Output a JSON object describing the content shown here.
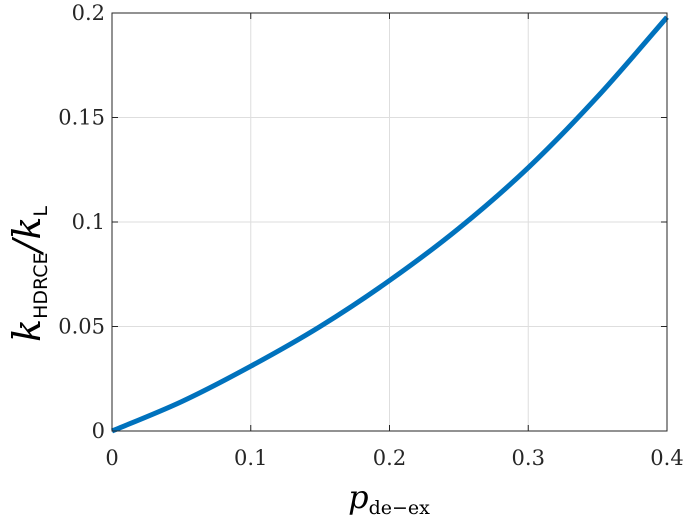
{
  "chart_data": {
    "type": "line",
    "xlabel": {
      "main": "p",
      "sub": "de−ex"
    },
    "ylabel": {
      "main1": "k",
      "sub1": "HDRCE",
      "sep": "/",
      "main2": "k",
      "sub2": "L"
    },
    "xlim": [
      0,
      0.4
    ],
    "ylim": [
      0,
      0.2
    ],
    "xticks": [
      0,
      0.1,
      0.2,
      0.3,
      0.4
    ],
    "xtick_labels": [
      "0",
      "0.1",
      "0.2",
      "0.3",
      "0.4"
    ],
    "yticks": [
      0,
      0.05,
      0.1,
      0.15,
      0.2
    ],
    "ytick_labels": [
      "0",
      "0.05",
      "0.1",
      "0.15",
      "0.2"
    ],
    "grid": true,
    "series": [
      {
        "color": "#0072BD",
        "x": [
          0,
          0.05,
          0.1,
          0.15,
          0.2,
          0.25,
          0.3,
          0.35,
          0.4
        ],
        "y": [
          0,
          0.014,
          0.031,
          0.05,
          0.072,
          0.097,
          0.126,
          0.16,
          0.198
        ]
      }
    ]
  }
}
